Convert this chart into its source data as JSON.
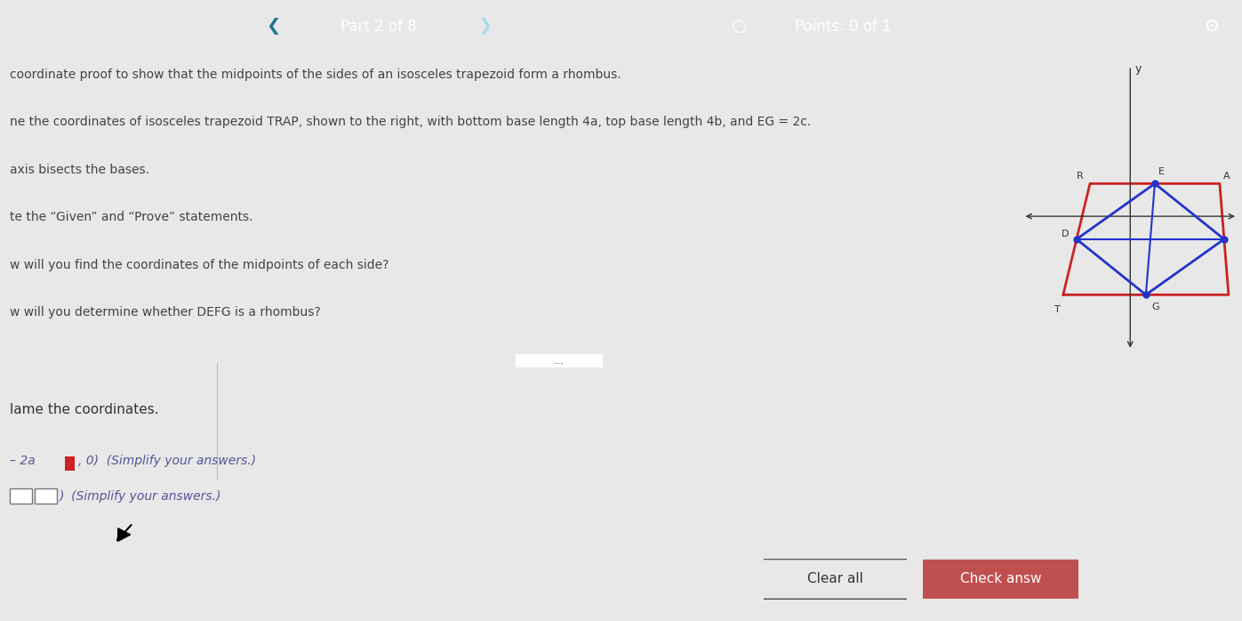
{
  "bg_top": "#3db8ce",
  "bg_upper": "#e8e8e8",
  "bg_lower": "#e0e0e0",
  "header_text": "Part 2 of 8",
  "points_text": "Points: 0 of 1",
  "lines": [
    "coordinate proof to show that the midpoints of the sides of an isosceles trapezoid form a rhombus.",
    "ne the coordinates of isosceles trapezoid TRAP, shown to the right, with bottom base length 4a, top base length 4b, and EG = 2c.",
    "axis bisects the bases.",
    "te the “Given” and “Prove” statements.",
    "w will you find the coordinates of the midpoints of each side?",
    "w will you determine whether DEFG is a rhombus?"
  ],
  "lower_label": "lame the coordinates.",
  "clear_btn": "Clear all",
  "check_btn": "Check answ",
  "dots_text": "...",
  "trap_color": "#cc2222",
  "rhombus_color": "#2233cc",
  "dot_color": "#2233cc",
  "axis_color": "#333333",
  "label_color": "#333333",
  "text_color": "#444444",
  "coord1_prefix": "– 2a",
  "coord1_suffix": ", 0)  (Simplify your answers.)",
  "coord2_suffix": ")  (Simplify your answers.)"
}
